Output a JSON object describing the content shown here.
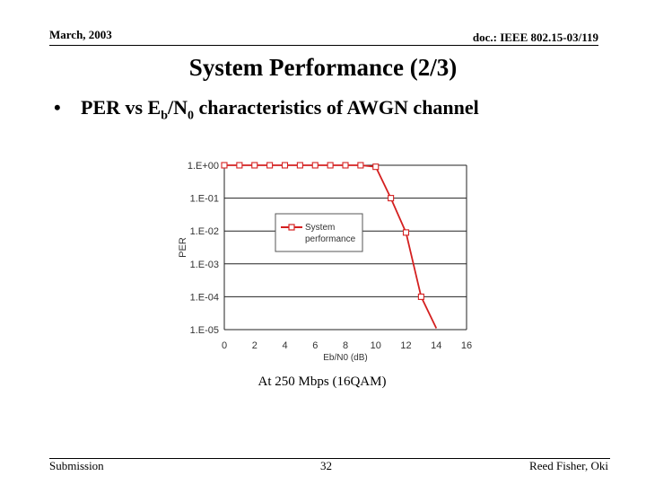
{
  "header": {
    "date": "March, 2003",
    "doc_id": "doc.: IEEE 802.15-03/119"
  },
  "slide": {
    "title": "System Performance (2/3)",
    "bullet_prefix": "PER vs E",
    "bullet_sub_b": "b",
    "bullet_mid": "/N",
    "bullet_sub_0": "0",
    "bullet_suffix": " characteristics of AWGN channel",
    "caption": "At 250 Mbps (16QAM)"
  },
  "footer": {
    "left": "Submission",
    "page": "32",
    "author": "Reed Fisher, Oki"
  },
  "colors": {
    "series": "#d42020",
    "grid": "#222222",
    "axis_text": "#333333"
  },
  "chart_data": {
    "type": "line",
    "xlabel": "Eb/N0 (dB)",
    "ylabel": "PER",
    "xlim": [
      0,
      16
    ],
    "ylim": [
      1e-05,
      1
    ],
    "yscale": "log",
    "x_ticks": [
      "0",
      "2",
      "4",
      "6",
      "8",
      "10",
      "12",
      "14",
      "16"
    ],
    "y_ticks": [
      "1.E+00",
      "1.E-01",
      "1.E-02",
      "1.E-03",
      "1.E-04",
      "1.E-05"
    ],
    "grid": "horizontal",
    "legend_position": "center",
    "series": [
      {
        "name": "System performance",
        "legend_lines": [
          "System",
          "performance"
        ],
        "marker": "square",
        "points": [
          [
            0,
            1.0
          ],
          [
            1,
            1.0
          ],
          [
            2,
            1.0
          ],
          [
            3,
            1.0
          ],
          [
            4,
            1.0
          ],
          [
            5,
            1.0
          ],
          [
            6,
            1.0
          ],
          [
            7,
            1.0
          ],
          [
            8,
            1.0
          ],
          [
            9,
            1.0
          ],
          [
            10,
            0.9
          ],
          [
            11,
            0.1
          ],
          [
            12,
            0.009
          ],
          [
            13,
            0.0001
          ],
          [
            14,
            1.1e-05
          ]
        ]
      }
    ]
  }
}
